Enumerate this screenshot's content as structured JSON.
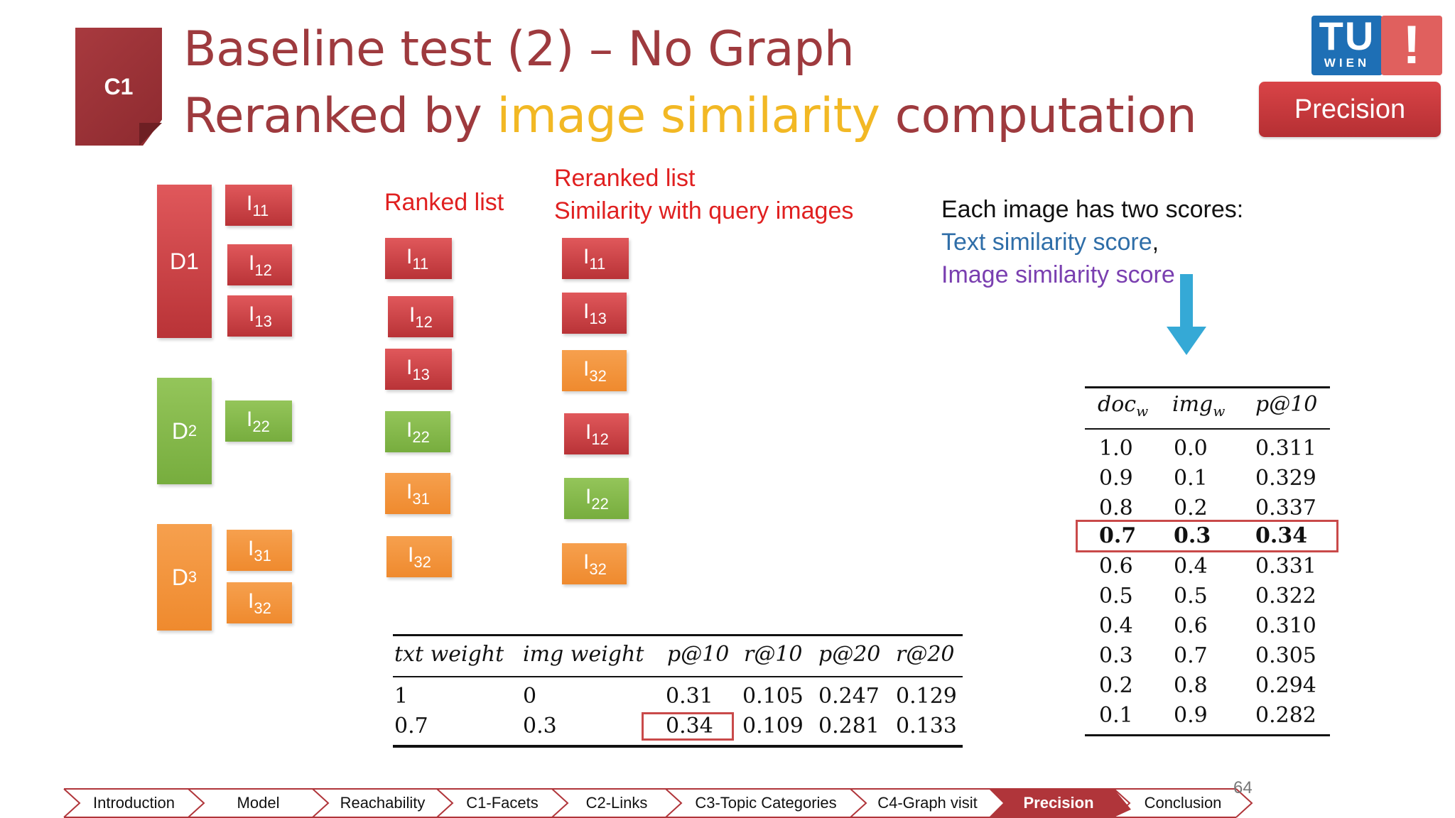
{
  "section_tag": "C1",
  "title": {
    "line1": "Baseline test (2) – No Graph",
    "line2_before": "Reranked by ",
    "line2_highlight": "image similarity",
    "line2_after": " computation"
  },
  "logo": {
    "tu": "TU",
    "wien": "WIEN",
    "mark": "!"
  },
  "badge": "Precision",
  "docs": {
    "d1": {
      "label": "D1",
      "images": [
        [
          "I",
          "11"
        ],
        [
          "I",
          "12"
        ],
        [
          "I",
          "13"
        ]
      ]
    },
    "d2": {
      "label": "D",
      "sub": "2",
      "images": [
        [
          "I",
          "22"
        ]
      ]
    },
    "d3": {
      "label": "D",
      "sub": "3",
      "images": [
        [
          "I",
          "31"
        ],
        [
          "I",
          "32"
        ]
      ]
    }
  },
  "ranked_list": {
    "label": "Ranked list",
    "items": [
      [
        "I",
        "11"
      ],
      [
        "I",
        "12"
      ],
      [
        "I",
        "13"
      ],
      [
        "I",
        "22"
      ],
      [
        "I",
        "31"
      ],
      [
        "I",
        "32"
      ]
    ]
  },
  "reranked_list": {
    "label_line1": "Reranked list",
    "label_line2": "Similarity with query images",
    "items": [
      [
        "I",
        "11"
      ],
      [
        "I",
        "13"
      ],
      [
        "I",
        "32"
      ],
      [
        "I",
        "12"
      ],
      [
        "I",
        "22"
      ],
      [
        "I",
        "32"
      ]
    ]
  },
  "note": {
    "line1": "Each image has two scores:",
    "line2": "Text similarity score",
    "line2_comma": ",",
    "line3": "Image similarity score"
  },
  "weights_table": {
    "headers": [
      "doc",
      "w",
      "img",
      "w",
      "p@10"
    ],
    "rows": [
      [
        "1.0",
        "0.0",
        "0.311"
      ],
      [
        "0.9",
        "0.1",
        "0.329"
      ],
      [
        "0.8",
        "0.2",
        "0.337"
      ],
      [
        "0.7",
        "0.3",
        "0.34"
      ],
      [
        "0.6",
        "0.4",
        "0.331"
      ],
      [
        "0.5",
        "0.5",
        "0.322"
      ],
      [
        "0.4",
        "0.6",
        "0.310"
      ],
      [
        "0.3",
        "0.7",
        "0.305"
      ],
      [
        "0.2",
        "0.8",
        "0.294"
      ],
      [
        "0.1",
        "0.9",
        "0.282"
      ]
    ]
  },
  "results_table": {
    "headers": [
      "txt weight",
      "img weight",
      "p@10",
      "r@10",
      "p@20",
      "r@20"
    ],
    "rows": [
      [
        "1",
        "0",
        "0.31",
        "0.105",
        "0.247",
        "0.129"
      ],
      [
        "0.7",
        "0.3",
        "0.34",
        "0.109",
        "0.281",
        "0.133"
      ]
    ]
  },
  "nav": [
    "Introduction",
    "Model",
    "Reachability",
    "C1-Facets",
    "C2-Links",
    "C3-Topic Categories",
    "C4-Graph visit",
    "Precision",
    "Conclusion"
  ],
  "page_number": "64",
  "colors": {
    "title": "#9e3a3e",
    "highlight": "#f2b824",
    "red": "#e02020",
    "blue": "#2f6ea8",
    "purple": "#7a3fb0",
    "arrow": "#35a9d6"
  }
}
